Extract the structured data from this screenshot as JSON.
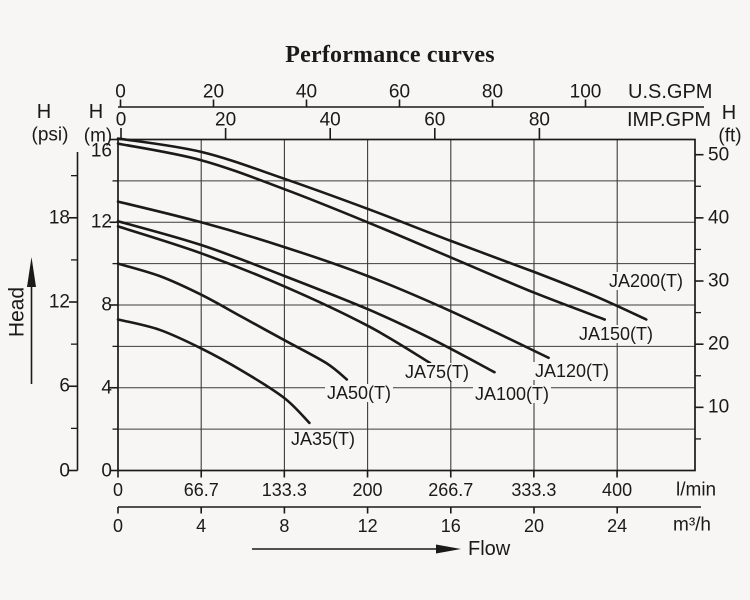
{
  "labels": {
    "title": "Performance curves",
    "h": "H",
    "psi": "(psi)",
    "m": "(m)",
    "ft": "(ft)",
    "us_gpm": "U.S.GPM",
    "imp_gpm": "IMP.GPM",
    "l_min": "l/min",
    "m3h": "m³/h",
    "head": "Head",
    "flow": "Flow"
  },
  "chart_data": {
    "type": "line",
    "title": "Performance curves",
    "x_axes": [
      {
        "id": "us_gpm",
        "label": "U.S.GPM",
        "position": "top",
        "ticks": [
          "0",
          "20",
          "40",
          "60",
          "80",
          "100"
        ]
      },
      {
        "id": "imp_gpm",
        "label": "IMP.GPM",
        "position": "top",
        "ticks": [
          "0",
          "20",
          "40",
          "60",
          "80"
        ]
      },
      {
        "id": "l_min",
        "label": "l/min",
        "position": "bottom",
        "ticks": [
          "0",
          "66.7",
          "133.3",
          "200",
          "266.7",
          "333.3",
          "400"
        ]
      },
      {
        "id": "m3_h",
        "label": "m³/h",
        "position": "bottom",
        "ticks": [
          "0",
          "4",
          "8",
          "12",
          "16",
          "20",
          "24"
        ]
      }
    ],
    "y_axes": [
      {
        "id": "h_m",
        "label": "H (m)",
        "position": "left",
        "ticks": [
          "0",
          "4",
          "8",
          "12",
          "16"
        ],
        "range": [
          0,
          16
        ]
      },
      {
        "id": "h_psi",
        "label": "H (psi)",
        "position": "far-left",
        "ticks": [
          "0",
          "6",
          "12",
          "18"
        ]
      },
      {
        "id": "h_ft",
        "label": "H (ft)",
        "position": "right",
        "ticks": [
          "10",
          "20",
          "30",
          "40",
          "50"
        ]
      }
    ],
    "grid": {
      "x_interval_m3h": 4,
      "y_interval_m": 2
    },
    "axis_arrows": {
      "y_label": "Head",
      "x_label": "Flow"
    },
    "series": [
      {
        "label": "JA200(T)",
        "points_m3h_head_m": [
          [
            0,
            16.05
          ],
          [
            4,
            15.4
          ],
          [
            8,
            14.1
          ],
          [
            12,
            12.65
          ],
          [
            16,
            11.1
          ],
          [
            20,
            9.6
          ],
          [
            23,
            8.4
          ],
          [
            25.4,
            7.3
          ]
        ]
      },
      {
        "label": "JA150(T)",
        "points_m3h_head_m": [
          [
            0,
            15.8
          ],
          [
            4,
            15.0
          ],
          [
            8,
            13.6
          ],
          [
            12,
            12.0
          ],
          [
            16,
            10.3
          ],
          [
            20,
            8.6
          ],
          [
            23.4,
            7.3
          ]
        ]
      },
      {
        "label": "JA120(T)",
        "points_m3h_head_m": [
          [
            0,
            13.0
          ],
          [
            4,
            12.0
          ],
          [
            8,
            10.8
          ],
          [
            12,
            9.4
          ],
          [
            16,
            7.7
          ],
          [
            20.7,
            5.45
          ]
        ]
      },
      {
        "label": "JA100(T)",
        "points_m3h_head_m": [
          [
            0,
            12.05
          ],
          [
            4,
            10.9
          ],
          [
            8,
            9.4
          ],
          [
            12,
            7.8
          ],
          [
            15,
            6.4
          ],
          [
            18.1,
            4.75
          ]
        ]
      },
      {
        "label": "JA75(T)",
        "points_m3h_head_m": [
          [
            0,
            11.8
          ],
          [
            4,
            10.5
          ],
          [
            8,
            8.9
          ],
          [
            12,
            7.0
          ],
          [
            15,
            5.2
          ]
        ]
      },
      {
        "label": "JA50(T)",
        "points_m3h_head_m": [
          [
            0,
            10.0
          ],
          [
            2,
            9.4
          ],
          [
            4,
            8.5
          ],
          [
            6,
            7.4
          ],
          [
            8,
            6.3
          ],
          [
            10,
            5.2
          ],
          [
            11,
            4.4
          ]
        ]
      },
      {
        "label": "JA35(T)",
        "points_m3h_head_m": [
          [
            0,
            7.3
          ],
          [
            2,
            6.8
          ],
          [
            4,
            5.9
          ],
          [
            6,
            4.8
          ],
          [
            8,
            3.5
          ],
          [
            9.2,
            2.3
          ]
        ]
      }
    ],
    "line_color": "#1a1a1a",
    "grid_color": "#3c3c3c"
  }
}
